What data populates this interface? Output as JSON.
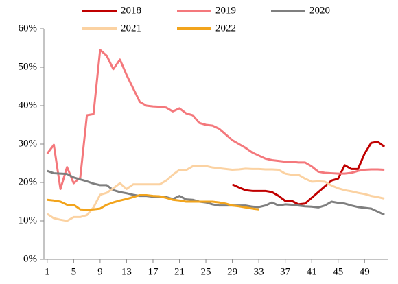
{
  "chart_data": {
    "type": "line",
    "x": [
      1,
      2,
      3,
      4,
      5,
      6,
      7,
      8,
      9,
      10,
      11,
      12,
      13,
      14,
      15,
      16,
      17,
      18,
      19,
      20,
      21,
      22,
      23,
      24,
      25,
      26,
      27,
      28,
      29,
      30,
      31,
      32,
      33,
      34,
      35,
      36,
      37,
      38,
      39,
      40,
      41,
      42,
      43,
      44,
      45,
      46,
      47,
      48,
      49,
      50,
      51,
      52
    ],
    "xlim": [
      0.5,
      52.5
    ],
    "xticks": [
      1,
      5,
      9,
      13,
      17,
      21,
      25,
      29,
      33,
      37,
      41,
      45,
      49
    ],
    "ylim": [
      0,
      60
    ],
    "yticks": [
      {
        "value": 0,
        "label": "0%"
      },
      {
        "value": 10,
        "label": "10%"
      },
      {
        "value": 20,
        "label": "20%"
      },
      {
        "value": 30,
        "label": "30%"
      },
      {
        "value": 40,
        "label": "40%"
      },
      {
        "value": 50,
        "label": "50%"
      },
      {
        "value": 60,
        "label": "60%"
      }
    ],
    "legend": "top",
    "series": [
      {
        "name": "2018",
        "color": "#c00000",
        "values": [
          null,
          null,
          null,
          null,
          null,
          null,
          null,
          null,
          null,
          null,
          null,
          null,
          null,
          null,
          null,
          null,
          null,
          null,
          null,
          null,
          null,
          null,
          null,
          null,
          null,
          null,
          null,
          null,
          19.5,
          18.7,
          18,
          17.8,
          17.8,
          17.8,
          17.5,
          16.5,
          15.2,
          15.2,
          14.3,
          14.5,
          16,
          17.5,
          19,
          20.5,
          21,
          24.5,
          23.5,
          23.5,
          27.5,
          30.3,
          30.6,
          29.3
        ]
      },
      {
        "name": "2019",
        "color": "#f4787c",
        "values": [
          27.5,
          29.8,
          18.3,
          24,
          19.8,
          21.3,
          37.5,
          37.8,
          54.5,
          53,
          49.5,
          52,
          48,
          44.5,
          41,
          40,
          39.8,
          39.7,
          39.5,
          38.5,
          39.3,
          38,
          37.5,
          35.5,
          35,
          34.8,
          34,
          32.5,
          31,
          30,
          29,
          27.8,
          27,
          26.2,
          25.8,
          25.6,
          25.4,
          25.4,
          25.2,
          25.2,
          24.2,
          22.8,
          22.5,
          22.4,
          22.3,
          22.3,
          22.5,
          23,
          23.3,
          23.4,
          23.4,
          23.3
        ]
      },
      {
        "name": "2020",
        "color": "#7f7f7f",
        "values": [
          23,
          22.4,
          22.3,
          22.2,
          21.3,
          20.8,
          20.3,
          19.7,
          19.3,
          19.3,
          18,
          17.5,
          17.2,
          16.8,
          16.5,
          16.5,
          16.3,
          16.3,
          16.2,
          15.7,
          16.5,
          15.6,
          15.5,
          15,
          14.8,
          14.3,
          14,
          14,
          14,
          14,
          14,
          13.7,
          13.6,
          14,
          14.8,
          14,
          14.3,
          14.2,
          14,
          13.8,
          13.7,
          13.5,
          14,
          15,
          14.7,
          14.5,
          14,
          13.6,
          13.4,
          13.2,
          12.4,
          11.6
        ]
      },
      {
        "name": "2021",
        "color": "#fbd2a2",
        "values": [
          11.8,
          10.7,
          10.3,
          10,
          11,
          11,
          11.5,
          13.5,
          16.8,
          17.3,
          18.5,
          19.8,
          18.3,
          19.5,
          19.5,
          19.5,
          19.5,
          19.5,
          20.5,
          22,
          23.3,
          23.2,
          24.2,
          24.3,
          24.3,
          23.9,
          23.7,
          23.5,
          23.3,
          23.4,
          23.6,
          23.5,
          23.5,
          23.4,
          23.4,
          23.3,
          22.3,
          22,
          22,
          21,
          20.2,
          20.3,
          20.2,
          19.2,
          18.5,
          18,
          17.7,
          17.3,
          17,
          16.5,
          16.2,
          15.8
        ]
      },
      {
        "name": "2022",
        "color": "#f2a41c",
        "values": [
          15.5,
          15.3,
          15,
          14.2,
          14.2,
          13,
          12.9,
          13,
          13.2,
          14.2,
          14.8,
          15.3,
          15.7,
          16.2,
          16.7,
          16.7,
          16.5,
          16.4,
          16,
          15.5,
          15.3,
          15,
          15,
          15,
          15,
          15,
          14.8,
          14.5,
          14,
          13.8,
          13.5,
          13.2,
          13,
          null,
          null,
          null,
          null,
          null,
          null,
          null,
          null,
          null,
          null,
          null,
          null,
          null,
          null,
          null,
          null,
          null,
          null,
          null
        ]
      }
    ]
  }
}
